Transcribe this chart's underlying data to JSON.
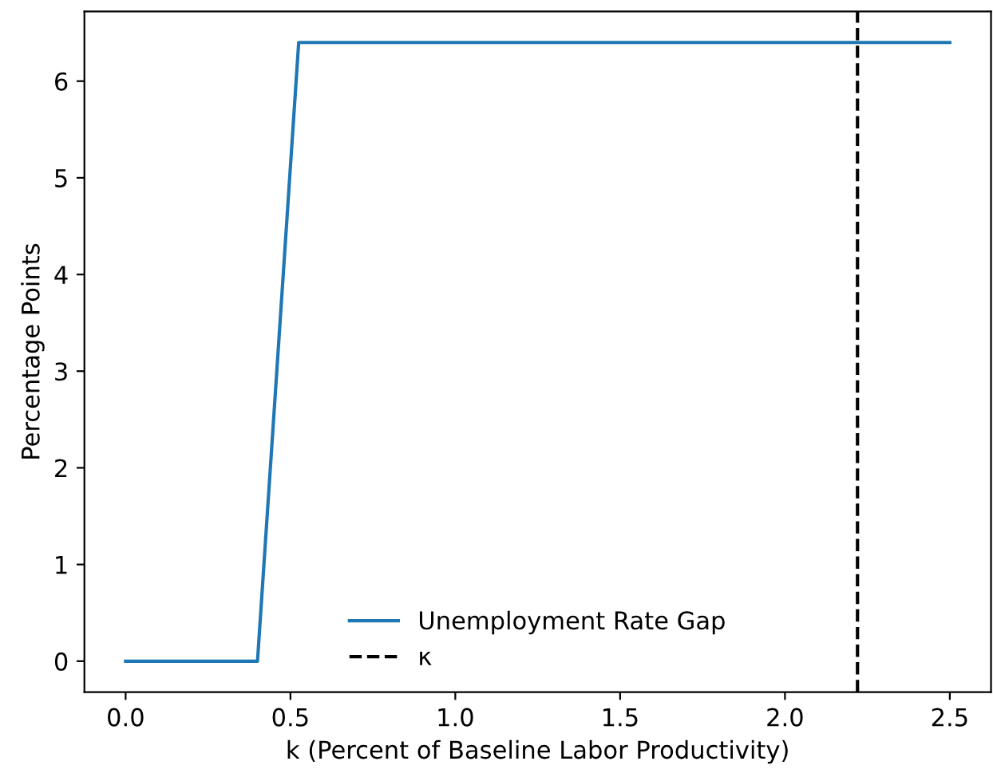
{
  "chart_data": {
    "type": "line",
    "xlabel": "k (Percent of Baseline Labor Productivity)",
    "ylabel": "Percentage Points",
    "series": [
      {
        "name": "Unemployment Rate Gap",
        "color": "#1f77b4",
        "x": [
          0,
          0.4,
          0.525,
          2.5
        ],
        "values": [
          0,
          0,
          6.4,
          6.4
        ]
      }
    ],
    "ref_lines": [
      {
        "axis": "x",
        "value": 2.22,
        "label": "κ",
        "color": "#000000",
        "line_style": "dashed"
      }
    ],
    "xlim": [
      -0.125,
      2.625
    ],
    "ylim": [
      -0.32,
      6.72
    ],
    "xticks": [
      {
        "value": 0,
        "label": "0.0"
      },
      {
        "value": 0.5,
        "label": "0.5"
      },
      {
        "value": 1,
        "label": "1.0"
      },
      {
        "value": 1.5,
        "label": "1.5"
      },
      {
        "value": 2,
        "label": "2.0"
      },
      {
        "value": 2.5,
        "label": "2.5"
      }
    ],
    "yticks": [
      0,
      1,
      2,
      3,
      4,
      5,
      6
    ],
    "grid": false,
    "legend": "bottom",
    "marker": "none",
    "line_style": "solid"
  }
}
